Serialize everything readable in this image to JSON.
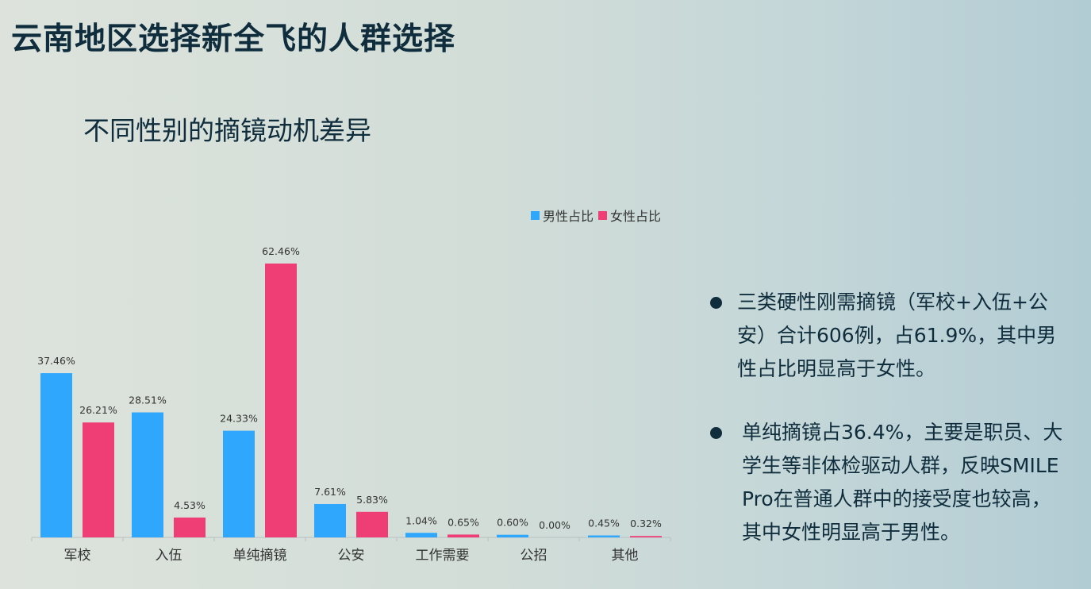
{
  "page": {
    "title": "云南地区选择新全飞的人群选择"
  },
  "chart_data": {
    "type": "bar",
    "title": "不同性别的摘镜动机差异",
    "categories": [
      "军校",
      "入伍",
      "单纯摘镜",
      "公安",
      "工作需要",
      "公招",
      "其他"
    ],
    "series": [
      {
        "name": "男性占比",
        "color": "#2ea7fc",
        "values": [
          37.46,
          28.51,
          24.33,
          7.61,
          1.04,
          0.6,
          0.45
        ]
      },
      {
        "name": "女性占比",
        "color": "#ef3e76",
        "values": [
          26.21,
          4.53,
          62.46,
          5.83,
          0.65,
          0.0,
          0.32
        ]
      }
    ],
    "data_labels": [
      [
        "37.46%",
        "28.51%",
        "24.33%",
        "7.61%",
        "1.04%",
        "0.60%",
        "0.45%"
      ],
      [
        "26.21%",
        "4.53%",
        "62.46%",
        "5.83%",
        "0.65%",
        "0.00%",
        "0.32%"
      ]
    ],
    "ylim": [
      0,
      62.46
    ],
    "grid": false,
    "legend_position": "top-right"
  },
  "notes": [
    "三类硬性刚需摘镜（军校+入伍+公安）合计606例，占61.9%，其中男性占比明显高于女性。",
    "单纯摘镜占36.4%，主要是职员、大学生等非体检驱动人群，反映SMILE Pro在普通人群中的接受度也较高，其中女性明显高于男性。"
  ]
}
